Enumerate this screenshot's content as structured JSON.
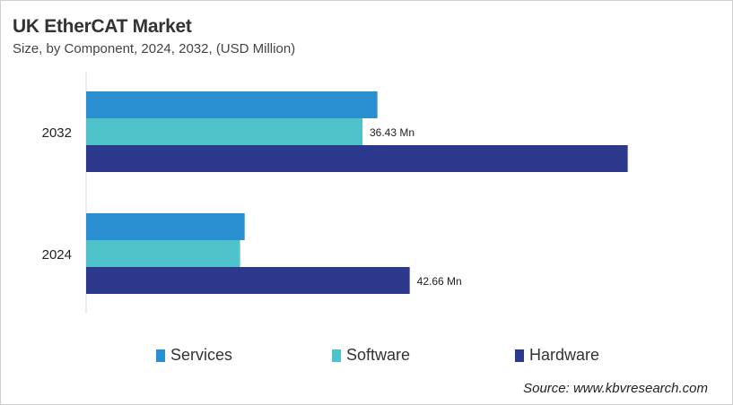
{
  "title": "UK EtherCAT Market",
  "subtitle": "Size, by Component, 2024, 2032, (USD Million)",
  "source": "Source: www.kbvresearch.com",
  "chart_data": {
    "type": "bar",
    "orientation": "horizontal",
    "categories": [
      "2032",
      "2024"
    ],
    "series": [
      {
        "name": "Services",
        "color": "#2a8fd0",
        "values": [
          38.4,
          20.9
        ]
      },
      {
        "name": "Software",
        "color": "#4fc3cc",
        "values": [
          36.43,
          20.3
        ]
      },
      {
        "name": "Hardware",
        "color": "#2b388c",
        "values": [
          71.4,
          42.66
        ]
      }
    ],
    "data_labels": [
      {
        "category": "2032",
        "series": "Software",
        "text": "36.43  Mn"
      },
      {
        "category": "2024",
        "series": "Hardware",
        "text": "42.66  Mn"
      }
    ],
    "xlim": [
      0,
      80
    ],
    "grid": false,
    "legend_position": "bottom"
  }
}
